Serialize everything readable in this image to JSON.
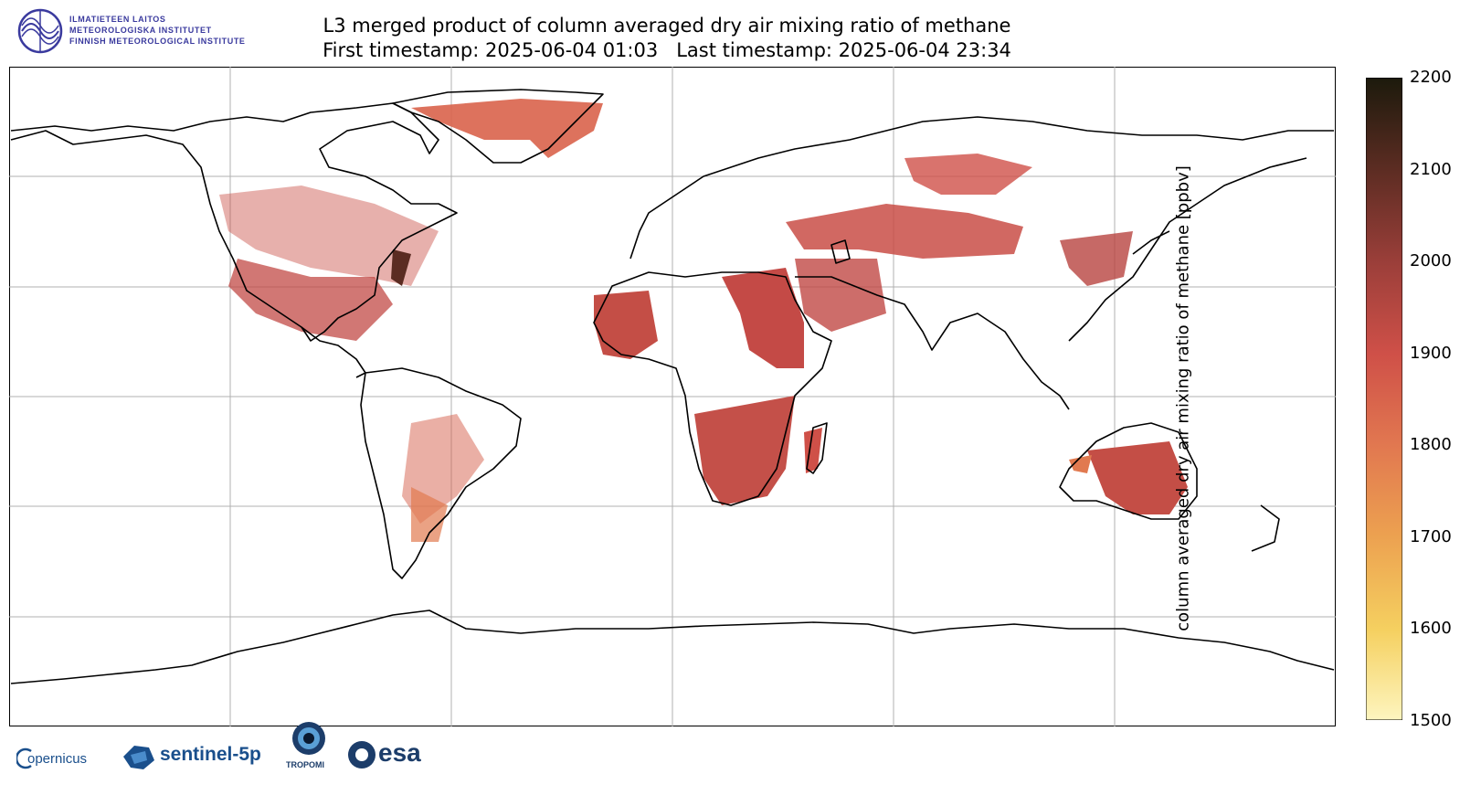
{
  "header": {
    "institute_lines": [
      "ILMATIETEEN LAITOS",
      "METEOROLOGISKA INSTITUTET",
      "FINNISH METEOROLOGICAL INSTITUTE"
    ],
    "title": "L3 merged product of column averaged dry air mixing ratio of methane",
    "subtitle": "First timestamp: 2025-06-04 01:03   Last timestamp: 2025-06-04 23:34"
  },
  "colorbar": {
    "label": "column averaged dry air mixing ratio of methane [ppbv]",
    "ticks": [
      "2200",
      "2100",
      "2000",
      "1900",
      "1800",
      "1700",
      "1600",
      "1500"
    ],
    "range": [
      1500,
      2200
    ],
    "colors": [
      "#fdf5bf",
      "#f5d060",
      "#eca050",
      "#e17750",
      "#cf5048",
      "#9c3f3a",
      "#5b2c22",
      "#1c1a0c"
    ]
  },
  "map": {
    "projection": "equirectangular",
    "coastline_color": "#000000",
    "gridlines": true,
    "grid_color": "#b0b0b0",
    "data_colors": {
      "low": "#e17a50",
      "mid": "#cf5048",
      "high": "#b84440",
      "peak": "#5b2c22"
    }
  },
  "footer_logos": {
    "copernicus": "opernicus",
    "sentinel": "sentinel-5p",
    "tropomi": "TROPOMI",
    "esa": "esa"
  }
}
